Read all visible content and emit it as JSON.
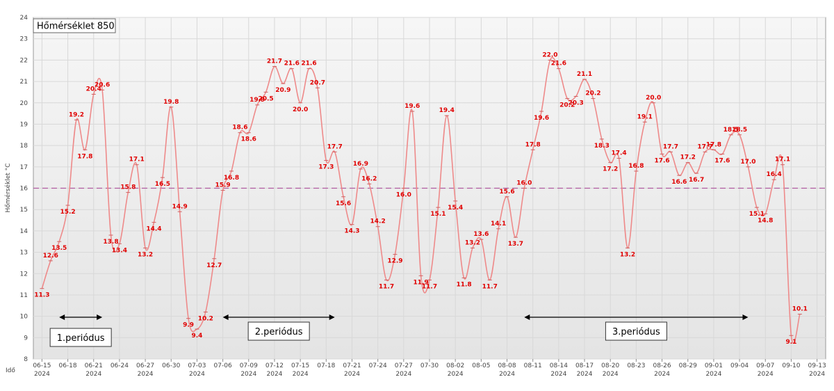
{
  "chart_data": {
    "type": "line",
    "title": "Hőmérséklet 850",
    "y_label": "Hőmérséklet °C",
    "x_label": "Idő",
    "x": [
      "2024-06-15",
      "2024-06-16",
      "2024-06-17",
      "2024-06-18",
      "2024-06-19",
      "2024-06-20",
      "2024-06-21",
      "2024-06-22",
      "2024-06-23",
      "2024-06-24",
      "2024-06-25",
      "2024-06-26",
      "2024-06-27",
      "2024-06-28",
      "2024-06-29",
      "2024-06-30",
      "2024-07-01",
      "2024-07-02",
      "2024-07-03",
      "2024-07-04",
      "2024-07-05",
      "2024-07-06",
      "2024-07-07",
      "2024-07-08",
      "2024-07-09",
      "2024-07-10",
      "2024-07-11",
      "2024-07-12",
      "2024-07-13",
      "2024-07-14",
      "2024-07-15",
      "2024-07-16",
      "2024-07-17",
      "2024-07-18",
      "2024-07-19",
      "2024-07-20",
      "2024-07-21",
      "2024-07-22",
      "2024-07-23",
      "2024-07-24",
      "2024-07-25",
      "2024-07-26",
      "2024-07-27",
      "2024-07-28",
      "2024-07-29",
      "2024-07-30",
      "2024-07-31",
      "2024-08-01",
      "2024-08-02",
      "2024-08-03",
      "2024-08-04",
      "2024-08-05",
      "2024-08-06",
      "2024-08-07",
      "2024-08-08",
      "2024-08-09",
      "2024-08-10",
      "2024-08-11",
      "2024-08-12",
      "2024-08-13",
      "2024-08-14",
      "2024-08-15",
      "2024-08-16",
      "2024-08-17",
      "2024-08-18",
      "2024-08-19",
      "2024-08-20",
      "2024-08-21",
      "2024-08-22",
      "2024-08-23",
      "2024-08-24",
      "2024-08-25",
      "2024-08-26",
      "2024-08-27",
      "2024-08-28",
      "2024-08-29",
      "2024-08-30",
      "2024-08-31",
      "2024-09-01",
      "2024-09-02",
      "2024-09-03",
      "2024-09-04",
      "2024-09-05",
      "2024-09-06",
      "2024-09-07",
      "2024-09-08",
      "2024-09-09",
      "2024-09-10",
      "2024-09-11"
    ],
    "series": [
      {
        "name": "Hőmérséklet 850",
        "color": "#ee8a8a",
        "label_color": "#e00000",
        "values": [
          11.3,
          12.6,
          13.5,
          15.2,
          19.2,
          17.8,
          20.4,
          20.6,
          13.8,
          13.4,
          15.8,
          17.1,
          13.2,
          14.4,
          16.5,
          19.8,
          14.9,
          9.9,
          9.4,
          10.2,
          12.7,
          15.9,
          16.8,
          18.6,
          18.6,
          19.9,
          20.5,
          21.7,
          20.9,
          21.6,
          20.0,
          21.6,
          20.7,
          17.3,
          17.7,
          15.6,
          14.3,
          16.9,
          16.2,
          14.2,
          11.7,
          12.9,
          16.0,
          19.6,
          11.9,
          11.7,
          15.1,
          19.4,
          15.4,
          11.8,
          13.2,
          13.6,
          11.7,
          14.1,
          15.6,
          13.7,
          16.0,
          17.8,
          19.6,
          22.0,
          21.6,
          20.2,
          20.3,
          21.1,
          20.2,
          18.3,
          17.2,
          17.4,
          13.2,
          16.8,
          19.1,
          20.0,
          17.6,
          17.7,
          16.6,
          17.2,
          16.7,
          17.7,
          17.8,
          17.6,
          18.5,
          18.5,
          17.0,
          15.1,
          14.8,
          16.4,
          17.1,
          9.1,
          10.1
        ],
        "value_labels": [
          "11.3",
          "12.6",
          "13.5",
          "15.2",
          "19.2",
          "17.8",
          "20.4",
          "20.6",
          "13.8",
          "13.4",
          "15.8",
          "17.1",
          "13.2",
          "14.4",
          "16.5",
          "19.8",
          "14.9",
          "9.9",
          "9.4",
          "10.2",
          "12.7",
          "15.9",
          "16.8",
          "18.6",
          "18.6",
          "19.9",
          "20.5",
          "21.7",
          "20.9",
          "21.6",
          "20.0",
          "21.6",
          "20.7",
          "17.3",
          "17.7",
          "15.6",
          "14.3",
          "16.9",
          "16.2",
          "14.2",
          "11.7",
          "12.9",
          "16.0",
          "19.6",
          "11.9",
          "11.7",
          "15.1",
          "19.4",
          "15.4",
          "11.8",
          "13.2",
          "13.6",
          "11.7",
          "14.1",
          "15.6",
          "13.7",
          "16.0",
          "17.8",
          "19.6",
          "22.0",
          "21.6",
          "20.2",
          "20.3",
          "21.1",
          "20.2",
          "18.3",
          "17.2",
          "17.4",
          "13.2",
          "16.8",
          "19.1",
          "20.0",
          "17.6",
          "17.7",
          "16.6",
          "17.2",
          "16.7",
          "17.7",
          "17.8",
          "17.6",
          "18.5",
          "18.5",
          "17.0",
          "15.1",
          "14.8",
          "16.4",
          "17.1",
          "9.1",
          "10.1"
        ]
      }
    ],
    "xlim": [
      "2024-06-14",
      "2024-09-14"
    ],
    "xticks": [
      {
        "value": "2024-06-15",
        "label": "06-15\n2024"
      },
      {
        "value": "2024-06-18",
        "label": "06-18"
      },
      {
        "value": "2024-06-21",
        "label": "06-21\n2024"
      },
      {
        "value": "2024-06-24",
        "label": "06-24"
      },
      {
        "value": "2024-06-27",
        "label": "06-27\n2024"
      },
      {
        "value": "2024-06-30",
        "label": "06-30"
      },
      {
        "value": "2024-07-03",
        "label": "07-03\n2024"
      },
      {
        "value": "2024-07-06",
        "label": "07-06"
      },
      {
        "value": "2024-07-09",
        "label": "07-09\n2024"
      },
      {
        "value": "2024-07-12",
        "label": "07-12\n2024"
      },
      {
        "value": "2024-07-15",
        "label": "07-15\n2024"
      },
      {
        "value": "2024-07-18",
        "label": "07-18"
      },
      {
        "value": "2024-07-21",
        "label": "07-21\n2024"
      },
      {
        "value": "2024-07-24",
        "label": "07-24"
      },
      {
        "value": "2024-07-27",
        "label": "07-27\n2024"
      },
      {
        "value": "2024-07-30",
        "label": "07-30"
      },
      {
        "value": "2024-08-02",
        "label": "08-02\n2024"
      },
      {
        "value": "2024-08-05",
        "label": "08-05"
      },
      {
        "value": "2024-08-08",
        "label": "08-08\n2024"
      },
      {
        "value": "2024-08-11",
        "label": "08-11"
      },
      {
        "value": "2024-08-14",
        "label": "08-14\n2024"
      },
      {
        "value": "2024-08-17",
        "label": "08-17\n2024"
      },
      {
        "value": "2024-08-20",
        "label": "08-20\n2024"
      },
      {
        "value": "2024-08-23",
        "label": "08-23"
      },
      {
        "value": "2024-08-26",
        "label": "08-26\n2024"
      },
      {
        "value": "2024-08-29",
        "label": "08-29"
      },
      {
        "value": "2024-09-01",
        "label": "09-01\n2024"
      },
      {
        "value": "2024-09-04",
        "label": "09-04"
      },
      {
        "value": "2024-09-07",
        "label": "09-07\n2024"
      },
      {
        "value": "2024-09-10",
        "label": "09-10"
      },
      {
        "value": "2024-09-13",
        "label": "09-13\n2024"
      }
    ],
    "ylim": [
      8,
      24
    ],
    "yticks": [
      8,
      9,
      10,
      11,
      12,
      13,
      14,
      15,
      16,
      17,
      18,
      19,
      20,
      21,
      22,
      23,
      24
    ],
    "grid": true,
    "reference_line": {
      "value": 16,
      "color": "#b05ca0"
    },
    "periods": [
      {
        "label": "1.periódus",
        "start": "2024-06-17",
        "end": "2024-06-22"
      },
      {
        "label": "2.periódus",
        "start": "2024-07-06",
        "end": "2024-07-19"
      },
      {
        "label": "3.periódus",
        "start": "2024-08-10",
        "end": "2024-09-05"
      }
    ]
  }
}
